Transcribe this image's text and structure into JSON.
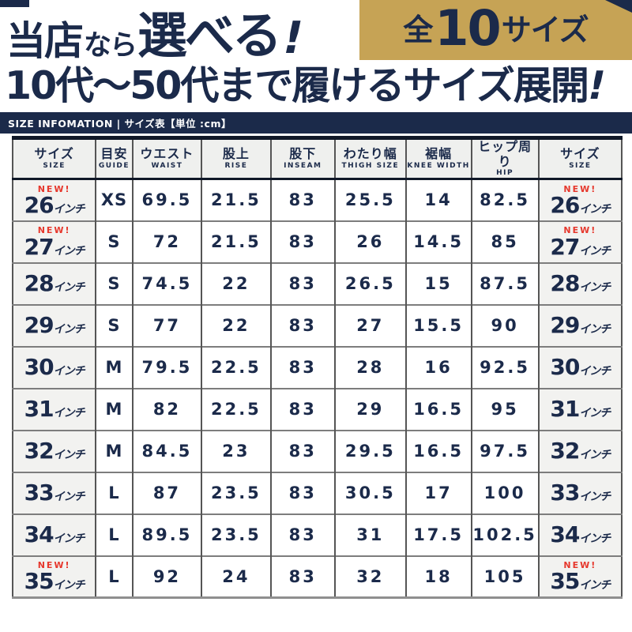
{
  "colors": {
    "navy": "#1b2a4a",
    "gold": "#c6a355",
    "red": "#e6372c",
    "header_cell_bg": "#eff0ee",
    "size_cell_bg": "#f2f2f0"
  },
  "headline": {
    "part1": "当店",
    "part2": "なら",
    "part3": "選べる",
    "bang": "!",
    "badge": {
      "prefix": "全",
      "number": "10",
      "suffix": "サイズ"
    },
    "line2_text": "10代〜50代まで履けるサイズ展開",
    "line2_bang": "!"
  },
  "info_bar": {
    "text": "SIZE INFOMATION | サイズ表【単位 :cm】"
  },
  "table": {
    "new_label": "NEW!",
    "inch_suffix": "インチ",
    "columns": [
      {
        "jp": "サイズ",
        "en": "SIZE"
      },
      {
        "jp": "目安",
        "en": "GUIDE"
      },
      {
        "jp": "ウエスト",
        "en": "WAIST"
      },
      {
        "jp": "股上",
        "en": "RISE"
      },
      {
        "jp": "股下",
        "en": "INSEAM"
      },
      {
        "jp": "わたり幅",
        "en": "THIGH SIZE"
      },
      {
        "jp": "裾幅",
        "en": "KNEE WIDTH"
      },
      {
        "jp": "ヒップ周り",
        "en": "HIP"
      },
      {
        "jp": "サイズ",
        "en": "SIZE"
      }
    ],
    "rows": [
      {
        "size": "26",
        "new": true,
        "guide": "XS",
        "waist": "69.5",
        "rise": "21.5",
        "inseam": "83",
        "thigh": "25.5",
        "knee": "14",
        "hip": "82.5"
      },
      {
        "size": "27",
        "new": true,
        "guide": "S",
        "waist": "72",
        "rise": "21.5",
        "inseam": "83",
        "thigh": "26",
        "knee": "14.5",
        "hip": "85"
      },
      {
        "size": "28",
        "new": false,
        "guide": "S",
        "waist": "74.5",
        "rise": "22",
        "inseam": "83",
        "thigh": "26.5",
        "knee": "15",
        "hip": "87.5"
      },
      {
        "size": "29",
        "new": false,
        "guide": "S",
        "waist": "77",
        "rise": "22",
        "inseam": "83",
        "thigh": "27",
        "knee": "15.5",
        "hip": "90"
      },
      {
        "size": "30",
        "new": false,
        "guide": "M",
        "waist": "79.5",
        "rise": "22.5",
        "inseam": "83",
        "thigh": "28",
        "knee": "16",
        "hip": "92.5"
      },
      {
        "size": "31",
        "new": false,
        "guide": "M",
        "waist": "82",
        "rise": "22.5",
        "inseam": "83",
        "thigh": "29",
        "knee": "16.5",
        "hip": "95"
      },
      {
        "size": "32",
        "new": false,
        "guide": "M",
        "waist": "84.5",
        "rise": "23",
        "inseam": "83",
        "thigh": "29.5",
        "knee": "16.5",
        "hip": "97.5"
      },
      {
        "size": "33",
        "new": false,
        "guide": "L",
        "waist": "87",
        "rise": "23.5",
        "inseam": "83",
        "thigh": "30.5",
        "knee": "17",
        "hip": "100"
      },
      {
        "size": "34",
        "new": false,
        "guide": "L",
        "waist": "89.5",
        "rise": "23.5",
        "inseam": "83",
        "thigh": "31",
        "knee": "17.5",
        "hip": "102.5"
      },
      {
        "size": "35",
        "new": true,
        "guide": "L",
        "waist": "92",
        "rise": "24",
        "inseam": "83",
        "thigh": "32",
        "knee": "18",
        "hip": "105"
      }
    ]
  }
}
